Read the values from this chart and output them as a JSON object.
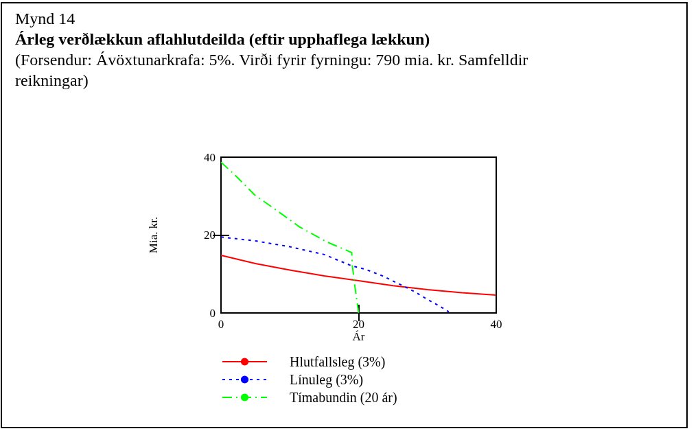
{
  "chart_data": {
    "type": "line",
    "title": "Árleg verðlækkun aflahlutdeilda (eftir upphaflega lækkun)",
    "subtitle": "(Forsendur: Ávöxtunarkrafa: 5%. Virði fyrir fyrningu: 790 mia. kr. Samfelldir reikningar)",
    "annotations": [
      "Mynd 14"
    ],
    "xlabel": "Ár",
    "ylabel": "Mia. kr.",
    "xlim": [
      0,
      40
    ],
    "xticks": [
      0,
      20,
      40
    ],
    "ylim": [
      0,
      40
    ],
    "yticks": [
      0,
      20,
      40
    ],
    "grid": false,
    "legend": "bottom",
    "marker": "none",
    "series": [
      {
        "name": "Hlutfallsleg (3%)",
        "color": "#ff0000",
        "line_style": "solid",
        "x": [
          0,
          5,
          10,
          15,
          20,
          25,
          30,
          35,
          40
        ],
        "values": [
          14.8,
          12.7,
          11.0,
          9.5,
          8.3,
          7.0,
          6.0,
          5.2,
          4.6
        ]
      },
      {
        "name": "Línuleg (3%)",
        "color": "#0000ff",
        "line_style": "dotted",
        "x": [
          0,
          5,
          10,
          15,
          19,
          21,
          23.5,
          26.4,
          28.3,
          29.4,
          31.2,
          32.1,
          33.1
        ],
        "values": [
          19.5,
          18.5,
          17.0,
          15.0,
          12.1,
          11.2,
          9.5,
          7.0,
          5.3,
          4.1,
          2.3,
          1.4,
          0.3
        ]
      },
      {
        "name": "Tímabundin (20 ár)",
        "color": "#00ff00",
        "line_style": "dashed",
        "x": [
          0,
          2.1,
          4.9,
          8.2,
          11.4,
          15.3,
          19.0,
          19.1,
          19.5,
          20.0
        ],
        "values": [
          38.7,
          35.3,
          30.3,
          26.2,
          22.1,
          18.3,
          15.5,
          12.0,
          6.3,
          0
        ]
      }
    ]
  }
}
